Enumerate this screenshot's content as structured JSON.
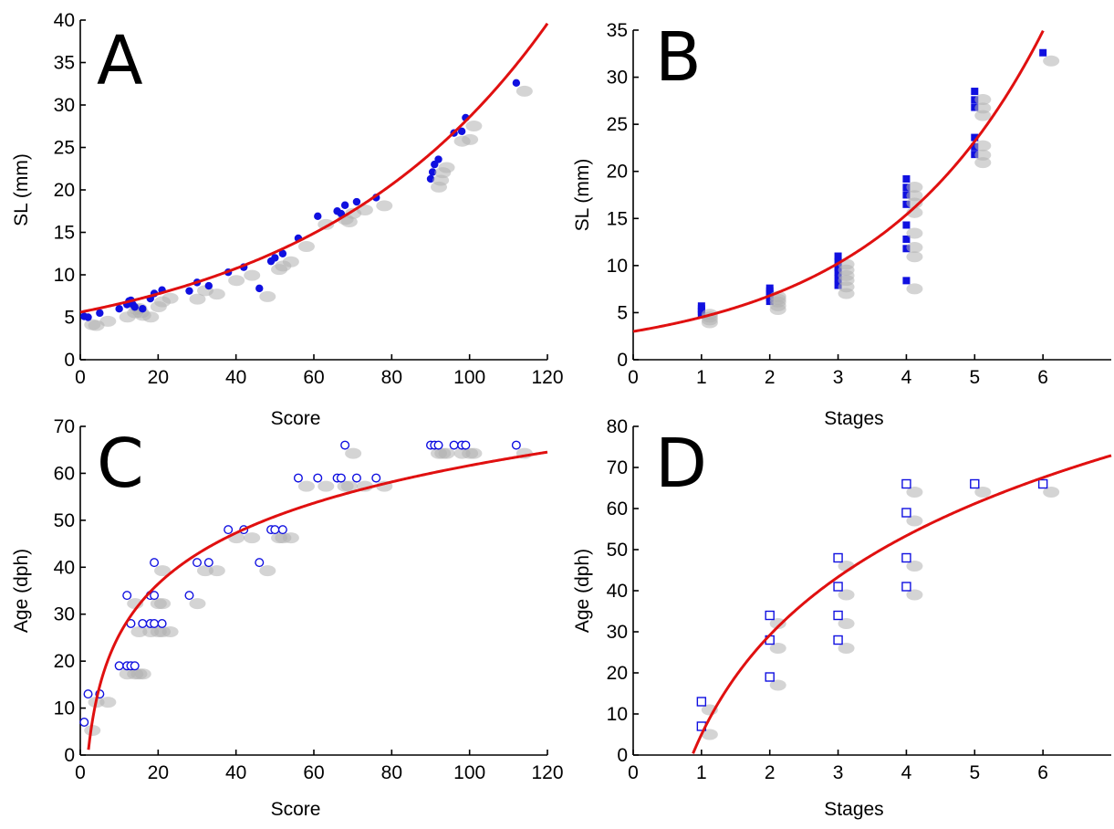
{
  "chart_data": [
    {
      "panel": "A",
      "type": "scatter",
      "xlabel": "Score",
      "ylabel": "SL (mm)",
      "xlim": [
        0,
        120
      ],
      "ylim": [
        0,
        40
      ],
      "xticks": [
        0,
        20,
        40,
        60,
        80,
        100,
        120
      ],
      "yticks": [
        0,
        5,
        10,
        15,
        20,
        25,
        30,
        35,
        40
      ],
      "marker": "filled-circle",
      "marker_color": "#1010e0",
      "fit_color": "#e01010",
      "fit": {
        "model": "exponential",
        "a": 5.6,
        "b": 0.0163
      },
      "series": [
        {
          "x": [
            1,
            2,
            5,
            10,
            12,
            12.5,
            13,
            13.5,
            14,
            16,
            18,
            19,
            21,
            28,
            30,
            33,
            38,
            42,
            46,
            49,
            50,
            52,
            56,
            61,
            66,
            67,
            68,
            71,
            76,
            90,
            90.5,
            91,
            92,
            96,
            98,
            99,
            112
          ],
          "y": [
            5.1,
            5,
            5.5,
            6,
            6.5,
            6.9,
            7,
            6.5,
            6.2,
            6,
            7.2,
            7.8,
            8.2,
            8.1,
            9.1,
            8.7,
            10.3,
            10.9,
            8.4,
            11.6,
            12,
            12.5,
            14.3,
            16.9,
            17.5,
            17.2,
            18.2,
            18.6,
            19.1,
            21.3,
            22.1,
            23,
            23.6,
            26.7,
            26.9,
            28.5,
            32.6
          ]
        }
      ]
    },
    {
      "panel": "B",
      "type": "scatter",
      "xlabel": "Stages",
      "ylabel": "SL (mm)",
      "xlim": [
        0,
        7
      ],
      "ylim": [
        0,
        35
      ],
      "xticks": [
        0,
        1,
        2,
        3,
        4,
        5,
        6
      ],
      "yticks": [
        0,
        5,
        10,
        15,
        20,
        25,
        30,
        35
      ],
      "marker": "filled-square",
      "marker_color": "#1010e0",
      "fit_color": "#e01010",
      "fit": {
        "model": "exponential",
        "a": 3.0,
        "b": 0.409
      },
      "series": [
        {
          "x": [
            1,
            1,
            1,
            1,
            2,
            2,
            2,
            2,
            2,
            3,
            3,
            3,
            3,
            3,
            3,
            4,
            4,
            4,
            4,
            4,
            4,
            4,
            4,
            5,
            5,
            5,
            5,
            5,
            5,
            6
          ],
          "y": [
            4.8,
            5.1,
            5.4,
            5.7,
            6.2,
            6.6,
            7.0,
            7.3,
            7.6,
            7.9,
            8.6,
            9.3,
            9.8,
            10.4,
            11.0,
            8.4,
            11.8,
            12.8,
            14.3,
            16.5,
            17.5,
            18.3,
            19.2,
            21.8,
            22.6,
            23.6,
            26.8,
            27.6,
            28.5,
            32.6
          ]
        }
      ]
    },
    {
      "panel": "C",
      "type": "scatter",
      "xlabel": "Score",
      "ylabel": "Age (dph)",
      "xlim": [
        0,
        120
      ],
      "ylim": [
        0,
        70
      ],
      "xticks": [
        0,
        20,
        40,
        60,
        80,
        100,
        120
      ],
      "yticks": [
        0,
        10,
        20,
        30,
        40,
        50,
        60,
        70
      ],
      "marker": "open-circle",
      "marker_color": "#1010e0",
      "fit_color": "#e01010",
      "fit": {
        "model": "logarithmic",
        "a": -10.5,
        "b": 15.67
      },
      "series": [
        {
          "x": [
            1,
            2,
            5,
            10,
            12,
            12,
            13,
            13,
            14,
            16,
            18,
            18,
            19,
            19,
            19,
            21,
            28,
            30,
            33,
            38,
            42,
            46,
            49,
            50,
            52,
            56,
            61,
            66,
            67,
            68,
            71,
            76,
            90,
            91,
            92,
            96,
            98,
            99,
            112
          ],
          "y": [
            7,
            13,
            13,
            19,
            19,
            34,
            19,
            28,
            19,
            28,
            28,
            34,
            34,
            28,
            41,
            28,
            34,
            41,
            41,
            48,
            48,
            41,
            48,
            48,
            48,
            59,
            59,
            59,
            59,
            66,
            59,
            59,
            66,
            66,
            66,
            66,
            66,
            66,
            66
          ]
        }
      ]
    },
    {
      "panel": "D",
      "type": "scatter",
      "xlabel": "Stages",
      "ylabel": "Age (dph)",
      "xlim": [
        0,
        7
      ],
      "ylim": [
        0,
        80
      ],
      "xticks": [
        0,
        1,
        2,
        3,
        4,
        5,
        6
      ],
      "yticks": [
        0,
        10,
        20,
        30,
        40,
        50,
        60,
        70,
        80
      ],
      "marker": "open-square",
      "marker_color": "#1010e0",
      "fit_color": "#e01010",
      "fit": {
        "model": "logarithmic",
        "a": 5.0,
        "b": 34.9
      },
      "series": [
        {
          "x": [
            1,
            1,
            2,
            2,
            2,
            3,
            3,
            3,
            3,
            4,
            4,
            4,
            4,
            5,
            6
          ],
          "y": [
            7,
            13,
            19,
            28,
            34,
            28,
            34,
            41,
            48,
            41,
            48,
            59,
            66,
            66,
            66
          ]
        }
      ]
    }
  ]
}
